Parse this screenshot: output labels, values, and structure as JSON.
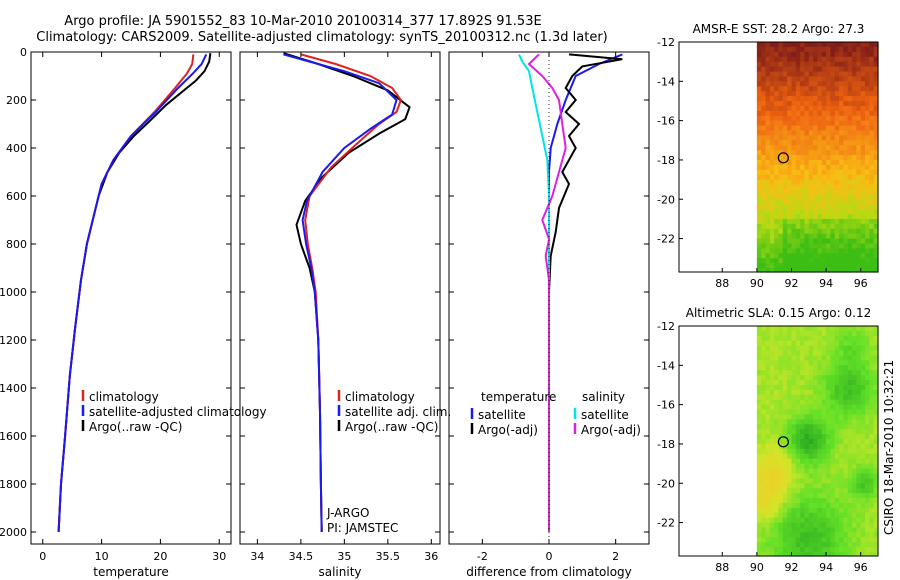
{
  "title": {
    "line1": "Argo profile: JA 5901552_83 10-Mar-2010 20100314_377 17.892S 91.53E",
    "line2": "Climatology: CARS2009. Satellite-adjusted climatology: synTS_20100312.nc (1.3d later)"
  },
  "colors": {
    "climatology": "#dd2222",
    "satellite": "#1a1aee",
    "argo": "#000000",
    "sat_salinity": "#00e5e5",
    "argo_salinity": "#e020e0"
  },
  "credit": "CSIRO 18-Mar-2010 10:32:21",
  "chart_data": [
    {
      "type": "line",
      "id": "temperature",
      "xlabel": "temperature",
      "ylabel": "",
      "xlim": [
        -2,
        32
      ],
      "ylim": [
        2050,
        0
      ],
      "xticks": [
        0,
        10,
        20,
        30
      ],
      "yticks": [
        0,
        200,
        400,
        600,
        800,
        1000,
        1200,
        1400,
        1600,
        1800,
        2000
      ],
      "legend": [
        "climatology",
        "satellite-adjusted climatology",
        "Argo(..raw -QC)"
      ],
      "series": [
        {
          "name": "climatology",
          "color": "#dd2222",
          "points": [
            [
              25.6,
              10
            ],
            [
              25.4,
              50
            ],
            [
              24.5,
              90
            ],
            [
              22.5,
              150
            ],
            [
              19,
              250
            ],
            [
              15,
              350
            ],
            [
              12,
              450
            ],
            [
              10,
              550
            ],
            [
              9,
              650
            ],
            [
              7.5,
              800
            ],
            [
              6.5,
              950
            ],
            [
              5.5,
              1150
            ],
            [
              4.6,
              1350
            ],
            [
              3.8,
              1600
            ],
            [
              3.1,
              1800
            ],
            [
              2.7,
              2000
            ]
          ]
        },
        {
          "name": "satellite-adjusted climatology",
          "color": "#1a1aee",
          "points": [
            [
              27.8,
              10
            ],
            [
              27,
              50
            ],
            [
              25.5,
              90
            ],
            [
              23,
              150
            ],
            [
              19.2,
              250
            ],
            [
              15,
              350
            ],
            [
              12,
              450
            ],
            [
              10,
              550
            ],
            [
              9,
              650
            ],
            [
              7.5,
              800
            ],
            [
              6.5,
              950
            ],
            [
              5.5,
              1150
            ],
            [
              4.6,
              1350
            ],
            [
              3.8,
              1600
            ],
            [
              3.1,
              1800
            ],
            [
              2.7,
              2000
            ]
          ]
        },
        {
          "name": "Argo(..raw -QC)",
          "color": "#000000",
          "points": [
            [
              28.5,
              5
            ],
            [
              28.3,
              40
            ],
            [
              27.5,
              80
            ],
            [
              26,
              120
            ],
            [
              24,
              160
            ],
            [
              21,
              220
            ],
            [
              18.5,
              280
            ],
            [
              15.5,
              350
            ],
            [
              13,
              420
            ],
            [
              11,
              500
            ],
            [
              9.5,
              600
            ],
            [
              8.5,
              700
            ],
            [
              7.5,
              800
            ],
            [
              6.5,
              950
            ],
            [
              5.5,
              1150
            ],
            [
              4.6,
              1350
            ],
            [
              3.8,
              1600
            ],
            [
              3.1,
              1800
            ],
            [
              2.7,
              2000
            ]
          ]
        }
      ]
    },
    {
      "type": "line",
      "id": "salinity",
      "xlabel": "salinity",
      "ylabel": "",
      "xlim": [
        33.8,
        36.1
      ],
      "ylim": [
        2050,
        0
      ],
      "xticks": [
        34,
        34.5,
        35,
        35.5,
        36
      ],
      "legend": [
        "climatology",
        "satellite adj. clim.",
        "Argo(..raw -QC)"
      ],
      "notes": [
        "J-ARGO",
        "PI: JAMSTEC"
      ],
      "series": [
        {
          "name": "climatology",
          "color": "#dd2222",
          "points": [
            [
              34.5,
              10
            ],
            [
              34.9,
              50
            ],
            [
              35.3,
              100
            ],
            [
              35.55,
              150
            ],
            [
              35.65,
              200
            ],
            [
              35.6,
              250
            ],
            [
              35.4,
              300
            ],
            [
              35.15,
              380
            ],
            [
              34.85,
              480
            ],
            [
              34.6,
              600
            ],
            [
              34.55,
              700
            ],
            [
              34.58,
              800
            ],
            [
              34.63,
              900
            ],
            [
              34.67,
              1000
            ],
            [
              34.7,
              1200
            ],
            [
              34.72,
              1500
            ],
            [
              34.73,
              1800
            ],
            [
              34.74,
              2000
            ]
          ]
        },
        {
          "name": "satellite adj. clim.",
          "color": "#1a1aee",
          "points": [
            [
              34.3,
              10
            ],
            [
              34.6,
              40
            ],
            [
              35.0,
              80
            ],
            [
              35.4,
              130
            ],
            [
              35.6,
              200
            ],
            [
              35.55,
              260
            ],
            [
              35.3,
              320
            ],
            [
              35.0,
              400
            ],
            [
              34.75,
              500
            ],
            [
              34.57,
              620
            ],
            [
              34.52,
              700
            ],
            [
              34.56,
              800
            ],
            [
              34.62,
              900
            ],
            [
              34.66,
              1000
            ],
            [
              34.7,
              1200
            ],
            [
              34.72,
              1500
            ],
            [
              34.73,
              1800
            ],
            [
              34.74,
              2000
            ]
          ]
        },
        {
          "name": "Argo(..raw -QC)",
          "color": "#000000",
          "points": [
            [
              34.3,
              5
            ],
            [
              34.7,
              50
            ],
            [
              35.1,
              100
            ],
            [
              35.5,
              160
            ],
            [
              35.75,
              230
            ],
            [
              35.7,
              280
            ],
            [
              35.4,
              340
            ],
            [
              35.05,
              420
            ],
            [
              34.75,
              520
            ],
            [
              34.55,
              620
            ],
            [
              34.45,
              720
            ],
            [
              34.5,
              800
            ],
            [
              34.55,
              850
            ],
            [
              34.6,
              900
            ],
            [
              34.66,
              1000
            ],
            [
              34.7,
              1200
            ],
            [
              34.72,
              1500
            ],
            [
              34.73,
              1800
            ],
            [
              34.74,
              2000
            ]
          ]
        }
      ]
    },
    {
      "type": "line",
      "id": "difference",
      "xlabel": "difference from climatology",
      "ylabel": "",
      "xlim": [
        -3,
        3
      ],
      "ylim": [
        2050,
        0
      ],
      "xticks": [
        -2,
        0,
        2
      ],
      "legend_temperature_header": "temperature",
      "legend_salinity_header": "salinity",
      "legend": [
        "satellite",
        "Argo(-adj)",
        "satellite",
        "Argo(-adj)"
      ],
      "series": [
        {
          "name": "temperature satellite",
          "color": "#1a1aee",
          "points": [
            [
              2.2,
              10
            ],
            [
              1.5,
              50
            ],
            [
              0.8,
              100
            ],
            [
              0.5,
              200
            ],
            [
              0.25,
              300
            ],
            [
              0.05,
              400
            ],
            [
              0,
              500
            ],
            [
              0,
              2000
            ]
          ]
        },
        {
          "name": "temperature Argo(-adj)",
          "color": "#000000",
          "points": [
            [
              0.6,
              10
            ],
            [
              2.2,
              30
            ],
            [
              1.0,
              60
            ],
            [
              0.7,
              100
            ],
            [
              0.5,
              150
            ],
            [
              0.8,
              200
            ],
            [
              0.5,
              250
            ],
            [
              0.9,
              300
            ],
            [
              0.6,
              350
            ],
            [
              0.8,
              400
            ],
            [
              0.4,
              500
            ],
            [
              0.6,
              550
            ],
            [
              0.3,
              650
            ],
            [
              0.2,
              750
            ],
            [
              0.05,
              850
            ],
            [
              0,
              1000
            ],
            [
              0,
              2000
            ]
          ]
        },
        {
          "name": "salinity satellite",
          "color": "#00e5e5",
          "points": [
            [
              -0.9,
              10
            ],
            [
              -0.8,
              40
            ],
            [
              -0.6,
              80
            ],
            [
              -0.5,
              150
            ],
            [
              -0.35,
              250
            ],
            [
              -0.2,
              350
            ],
            [
              -0.05,
              450
            ],
            [
              0,
              600
            ],
            [
              0,
              2000
            ]
          ]
        },
        {
          "name": "salinity Argo(-adj)",
          "color": "#e020e0",
          "points": [
            [
              -0.3,
              10
            ],
            [
              -0.6,
              50
            ],
            [
              -0.2,
              100
            ],
            [
              0.1,
              150
            ],
            [
              0.3,
              200
            ],
            [
              0.4,
              300
            ],
            [
              0.5,
              400
            ],
            [
              0.3,
              500
            ],
            [
              0.1,
              600
            ],
            [
              -0.2,
              700
            ],
            [
              0,
              780
            ],
            [
              -0.1,
              850
            ],
            [
              0,
              950
            ],
            [
              0,
              2000
            ]
          ]
        }
      ]
    },
    {
      "type": "heatmap",
      "id": "sst_map",
      "title": "AMSR-E SST: 28.2 Argo: 27.3",
      "xlim": [
        85.5,
        97
      ],
      "ylim": [
        -23.7,
        -12
      ],
      "xticks": [
        88,
        90,
        92,
        94,
        96
      ],
      "yticks": [
        -12,
        -14,
        -16,
        -18,
        -20,
        -22
      ],
      "data_lon_min": 90,
      "marker": {
        "lon": 91.53,
        "lat": -17.892
      }
    },
    {
      "type": "heatmap",
      "id": "sla_map",
      "title": "Altimetric SLA: 0.15 Argo: 0.12",
      "xlim": [
        85.5,
        97
      ],
      "ylim": [
        -23.7,
        -12
      ],
      "xticks": [
        88,
        90,
        92,
        94,
        96
      ],
      "yticks": [
        -12,
        -14,
        -16,
        -18,
        -20,
        -22
      ],
      "data_lon_min": 90,
      "marker": {
        "lon": 91.53,
        "lat": -17.892
      }
    }
  ]
}
